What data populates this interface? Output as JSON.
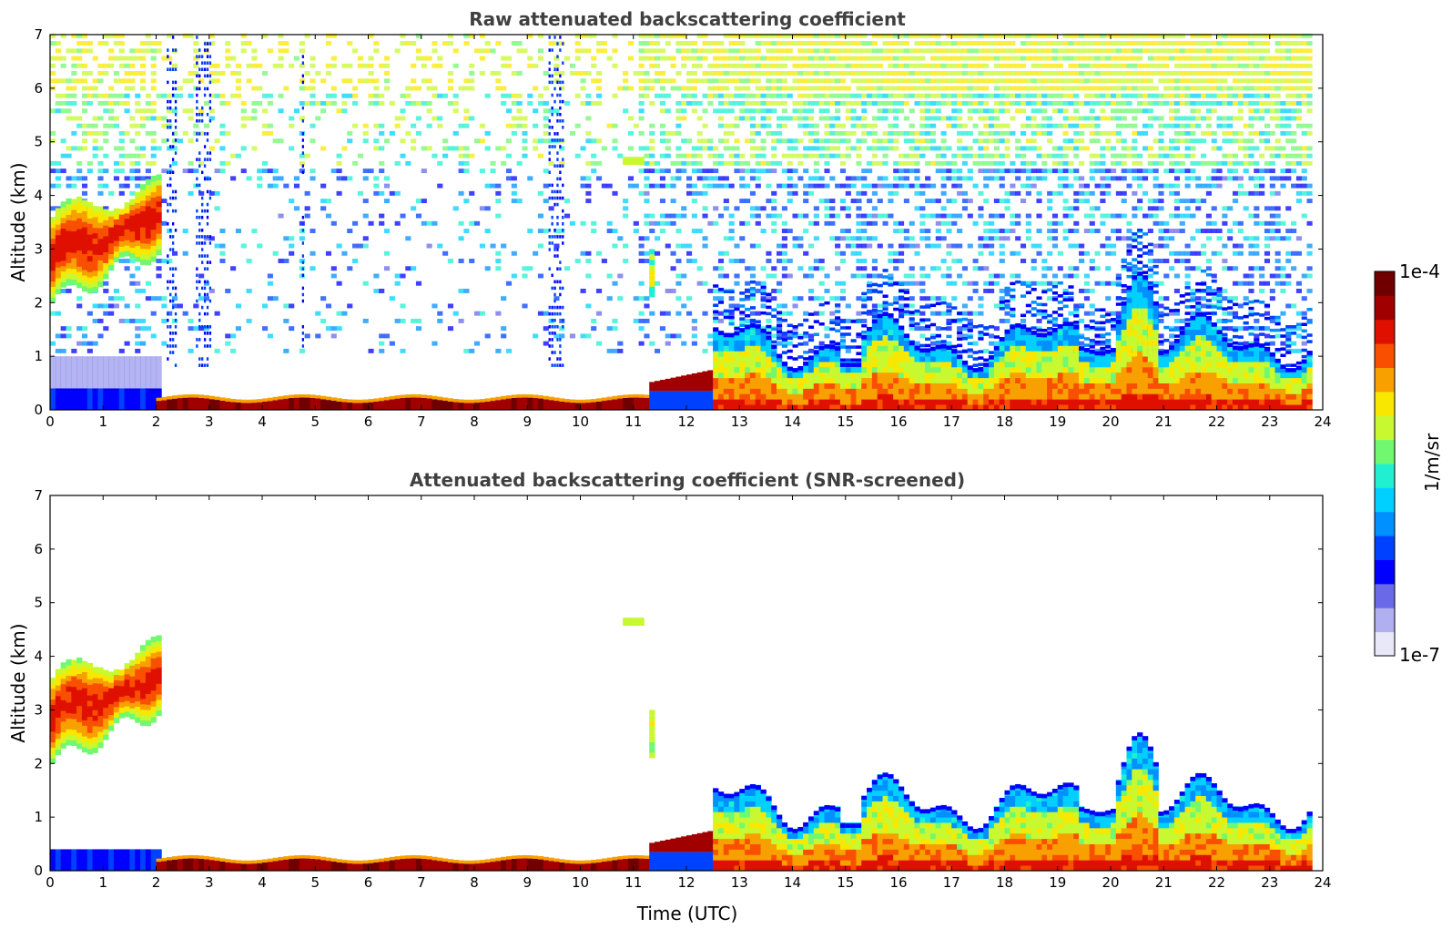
{
  "chart_data": [
    {
      "type": "heatmap",
      "title": "Raw attenuated backscattering coefficient",
      "xlabel": "",
      "ylabel": "Altitude (km)",
      "xlim": [
        0,
        24
      ],
      "ylim": [
        0,
        7
      ],
      "x_ticks": [
        "0",
        "1",
        "2",
        "3",
        "4",
        "5",
        "6",
        "7",
        "8",
        "9",
        "10",
        "11",
        "12",
        "13",
        "14",
        "15",
        "16",
        "17",
        "18",
        "19",
        "20",
        "21",
        "22",
        "23",
        "24"
      ],
      "y_ticks": [
        "0",
        "1",
        "2",
        "3",
        "4",
        "5",
        "6",
        "7"
      ],
      "data_end_time": 23.8,
      "features": [
        {
          "kind": "elevated_layer",
          "t": [
            0,
            2.05
          ],
          "base_km": [
            2.0,
            3.0
          ],
          "top_km": [
            3.6,
            4.2
          ],
          "level": "high"
        },
        {
          "kind": "surface_layer",
          "t": [
            0,
            2.0
          ],
          "top_km": 0.4,
          "level": "low"
        },
        {
          "kind": "thin_surface_layer",
          "t": [
            2.0,
            11.2
          ],
          "top_km": 0.25,
          "level": "very_high"
        },
        {
          "kind": "transition_layer",
          "t": [
            11.2,
            12.4
          ],
          "top_km": 0.7,
          "level": "very_high"
        },
        {
          "kind": "boundary_layer",
          "t": [
            12.4,
            23.8
          ],
          "top_km": [
            1.0,
            2.0
          ],
          "level": "high"
        },
        {
          "kind": "aerosol_plume",
          "t": [
            20.2,
            20.8
          ],
          "top_km": 2.6,
          "level": "medium"
        },
        {
          "kind": "elevated_patch",
          "t": [
            11.0,
            11.25
          ],
          "base_km": 2.1,
          "top_km": 3.1,
          "level": "medium"
        },
        {
          "kind": "elevated_patch",
          "t": [
            10.8,
            11.2
          ],
          "base_km": 4.5,
          "top_km": 4.7,
          "level": "medium"
        },
        {
          "kind": "noise",
          "t": [
            0,
            23.8
          ],
          "alt_km": [
            1.0,
            7.0
          ],
          "note_visible": false
        }
      ]
    },
    {
      "type": "heatmap",
      "title": "Attenuated backscattering coefficient (SNR-screened)",
      "xlabel": "Time (UTC)",
      "ylabel": "Altitude (km)",
      "xlim": [
        0,
        24
      ],
      "ylim": [
        0,
        7
      ],
      "x_ticks": [
        "0",
        "1",
        "2",
        "3",
        "4",
        "5",
        "6",
        "7",
        "8",
        "9",
        "10",
        "11",
        "12",
        "13",
        "14",
        "15",
        "16",
        "17",
        "18",
        "19",
        "20",
        "21",
        "22",
        "23",
        "24"
      ],
      "y_ticks": [
        "0",
        "1",
        "2",
        "3",
        "4",
        "5",
        "6",
        "7"
      ],
      "data_end_time": 23.8
    }
  ],
  "colorbar": {
    "label": "1/m/sr",
    "max_label": "1e-4",
    "min_label": "1e-7",
    "scale": "log",
    "range": [
      1e-07,
      0.0001
    ],
    "colors": [
      "#e8e8f8",
      "#b0b0f0",
      "#6a6ae8",
      "#0000ff",
      "#0040ff",
      "#0090ff",
      "#00d0ff",
      "#20f0d0",
      "#70f870",
      "#c8f830",
      "#f8e800",
      "#f8a000",
      "#f85000",
      "#e01000",
      "#a00000",
      "#700000"
    ]
  }
}
